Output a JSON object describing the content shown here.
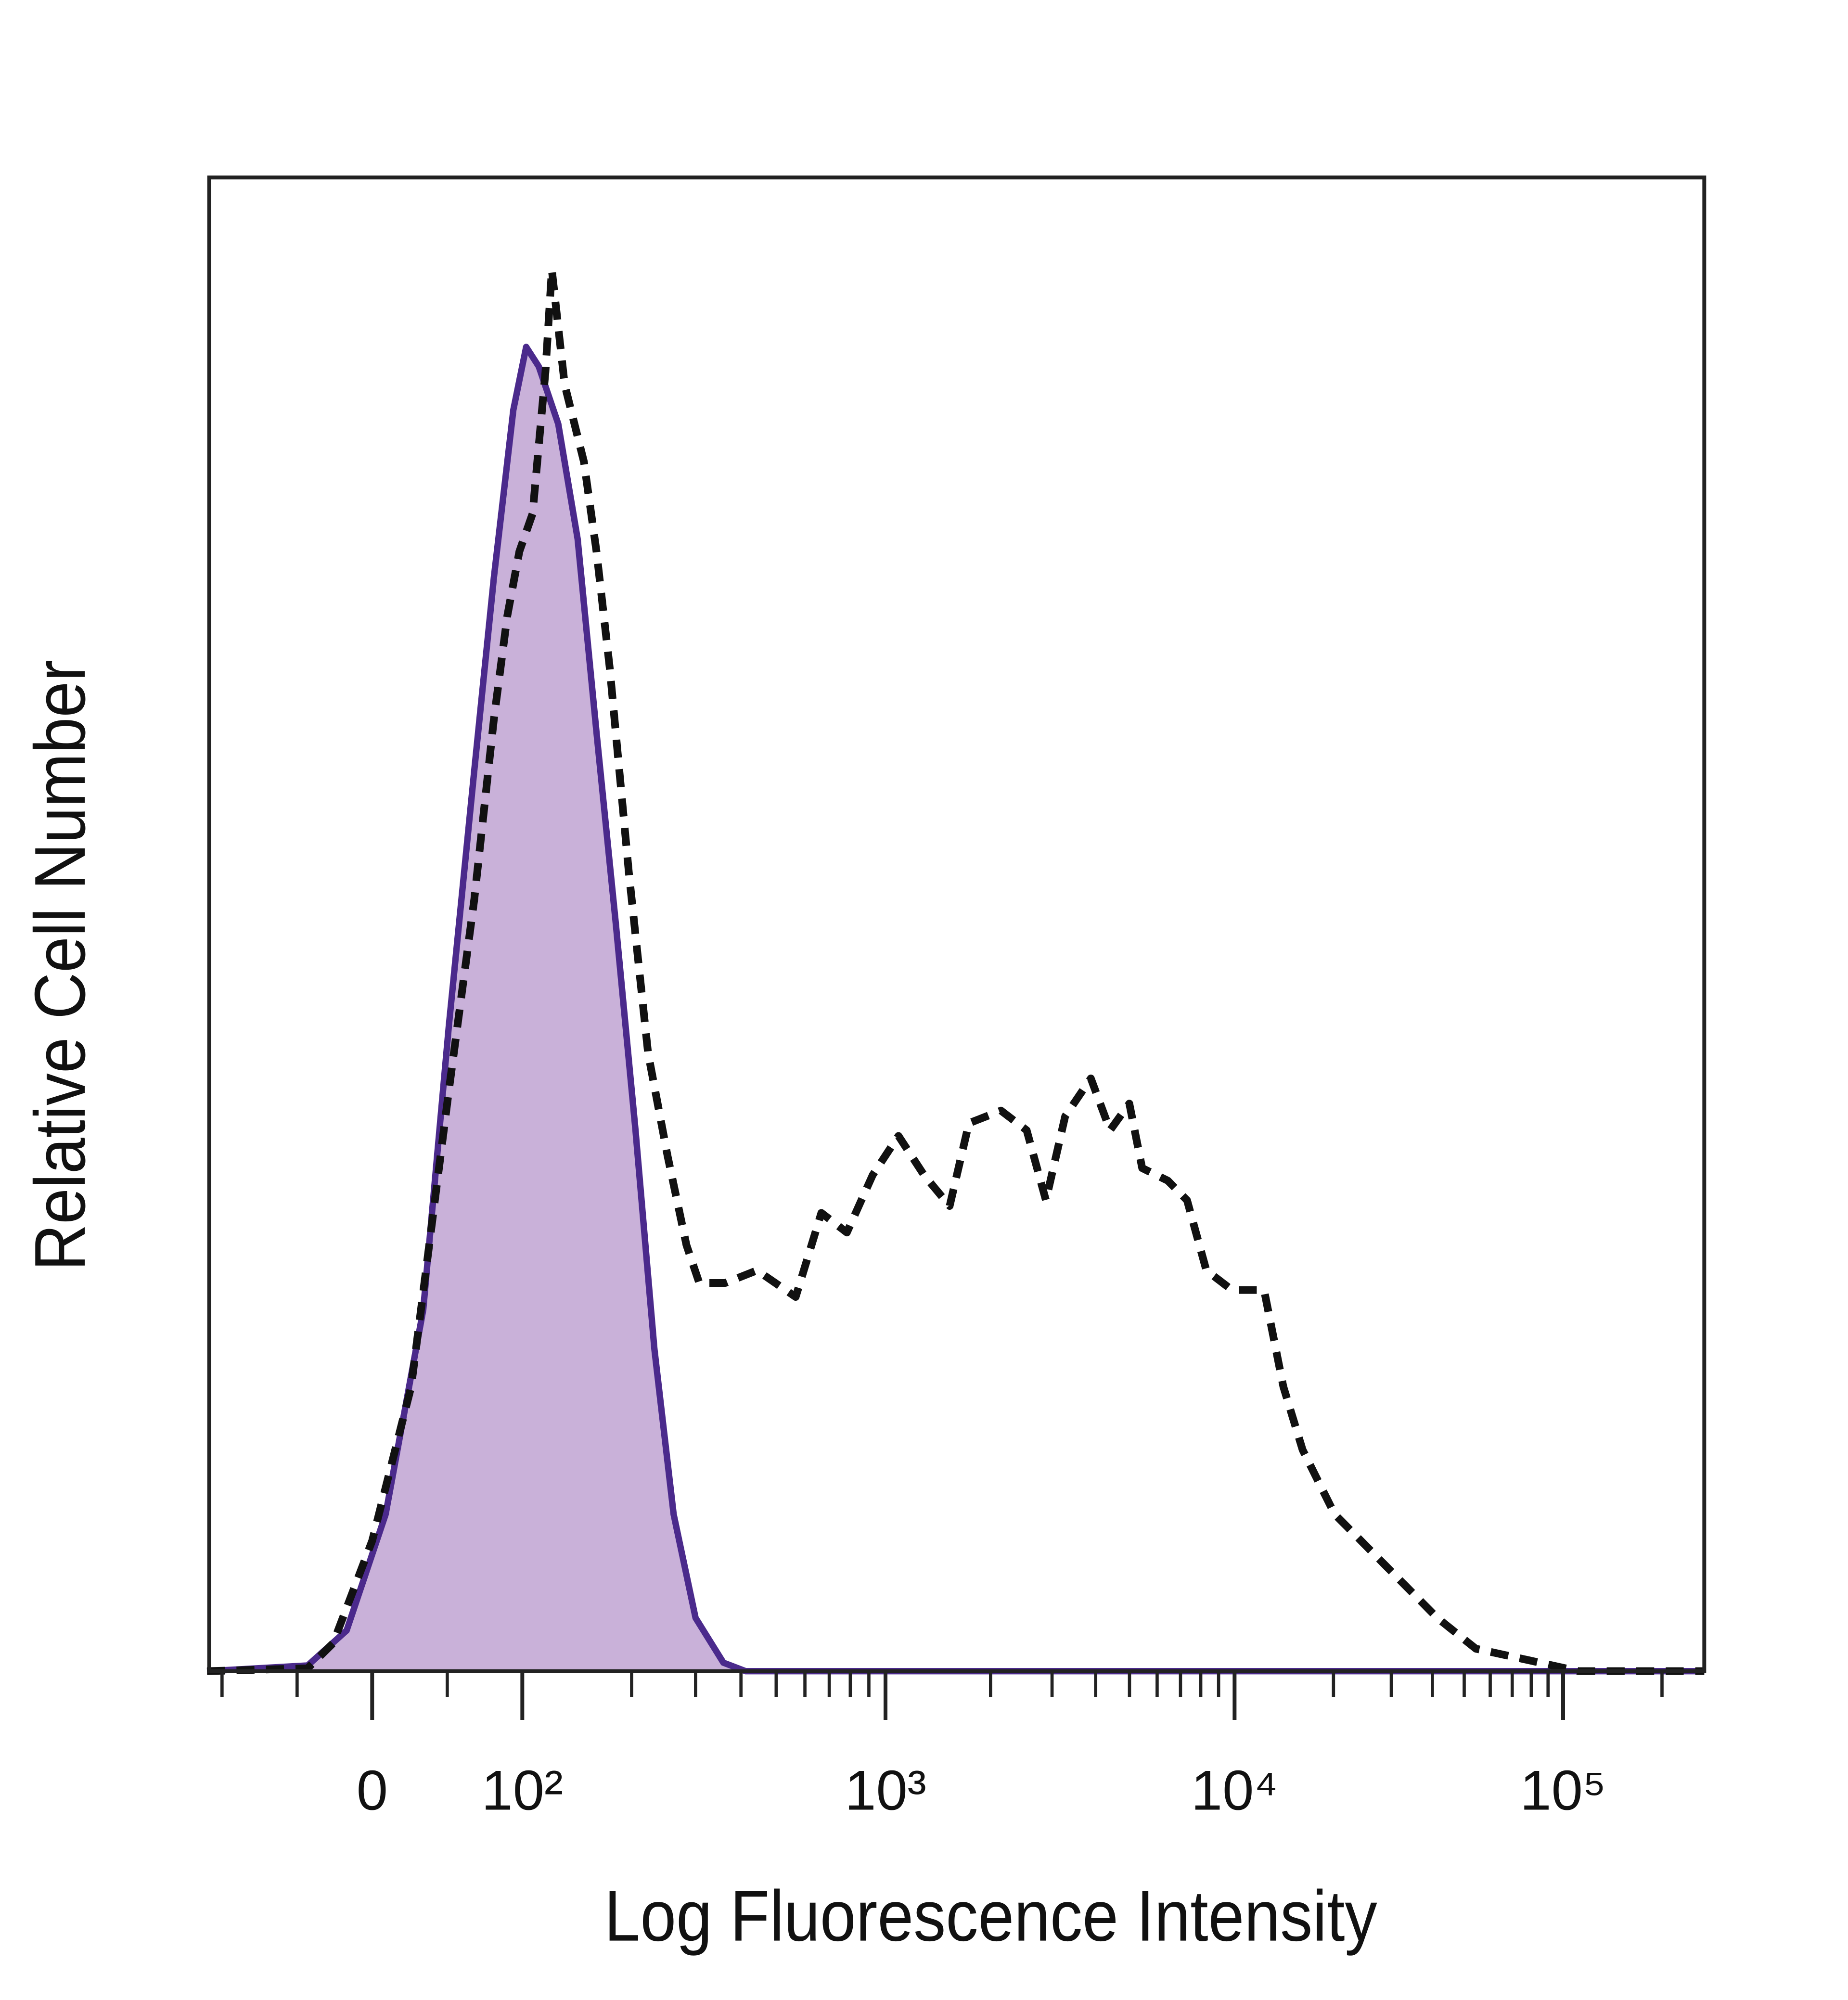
{
  "chart_data": {
    "type": "area",
    "title": "",
    "xlabel": "Log Fluorescence Intensity",
    "ylabel": "Relative Cell Number",
    "x_scale": "biexponential",
    "x_ticks": [
      0,
      100,
      1000,
      10000,
      100000
    ],
    "x_tick_labels": [
      "0",
      "10²",
      "10³",
      "10⁴",
      "10⁵"
    ],
    "xlim": [
      -110,
      269000
    ],
    "ylim": [
      0,
      106
    ],
    "grid": false,
    "legend": "none",
    "series": [
      {
        "style": "filled, solid outline",
        "color": "#4b2a8c",
        "fill": "#c9b1d9",
        "x": [
          -110,
          -43,
          -17,
          9,
          34,
          51,
          68,
          81,
          94,
          102.5,
          111,
          125.6,
          142,
          160,
          181,
          205,
          231,
          261,
          300,
          358,
          412,
          269000
        ],
        "y": [
          0,
          0.4,
          2.9,
          11.2,
          25.8,
          46,
          64.3,
          78,
          90,
          94.5,
          93.1,
          89,
          80.8,
          67,
          53.3,
          38.6,
          23,
          11.2,
          3.8,
          0.6,
          0,
          0
        ]
      },
      {
        "style": "dashed",
        "color": "#111111",
        "x": [
          -110,
          -43,
          -26,
          0,
          26,
          51,
          68,
          81,
          90,
          98,
          106.7,
          115.8,
          120.6,
          130.8,
          147.8,
          160,
          174,
          196.5,
          222,
          251,
          283,
          307,
          362,
          443,
          566,
          666,
          783,
          922,
          1089,
          1289,
          1527,
          1734,
          2142,
          2538,
          2882,
          3271,
          3875,
          4399,
          4994,
          5437,
          6440,
          7311,
          8300,
          9830,
          12294,
          14074,
          16107,
          20168,
          28900,
          41420,
          54260,
          85060,
          111400,
          269000
        ],
        "y": [
          0,
          0.2,
          2,
          9.3,
          20.3,
          41.4,
          55.1,
          67.9,
          75.3,
          79.9,
          82.6,
          92.7,
          100,
          91.8,
          86.3,
          79.9,
          71.6,
          57,
          44.1,
          36.8,
          30.4,
          27.7,
          27.7,
          28.6,
          26.7,
          32.7,
          31.3,
          35.4,
          38.2,
          35.4,
          33.2,
          39.1,
          40,
          38.6,
          33.6,
          39.6,
          42.3,
          38.6,
          40.5,
          35.9,
          35,
          33.6,
          28.6,
          27.2,
          27.2,
          20.3,
          15.8,
          11.2,
          7.5,
          3.8,
          1.6,
          0.6,
          0,
          0
        ]
      }
    ]
  }
}
